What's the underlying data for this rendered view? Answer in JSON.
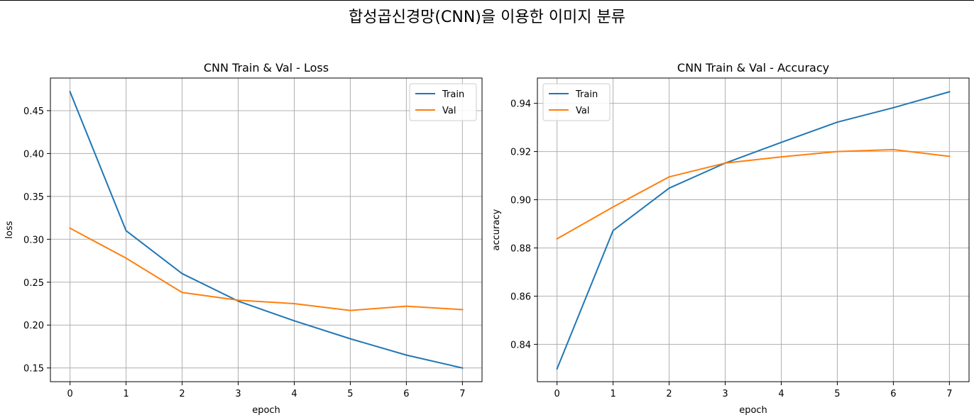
{
  "suptitle": "합성곱신경망(CNN)을 이용한 이미지 분류",
  "chart_data": [
    {
      "type": "line",
      "title": "CNN Train & Val - Loss",
      "xlabel": "epoch",
      "ylabel": "loss",
      "x": [
        0,
        1,
        2,
        3,
        4,
        5,
        6,
        7
      ],
      "xlim": [
        -0.35,
        7.35
      ],
      "ylim": [
        0.134,
        0.488
      ],
      "xticks": [
        "0",
        "1",
        "2",
        "3",
        "4",
        "5",
        "6",
        "7"
      ],
      "yticks": [
        "0.15",
        "0.20",
        "0.25",
        "0.30",
        "0.35",
        "0.40",
        "0.45"
      ],
      "grid": true,
      "legend_position": "top-right",
      "series": [
        {
          "name": "Train",
          "color": "#1f77b4",
          "values": [
            0.472,
            0.31,
            0.26,
            0.228,
            0.205,
            0.184,
            0.165,
            0.15
          ]
        },
        {
          "name": "Val",
          "color": "#ff7f0e",
          "values": [
            0.313,
            0.278,
            0.238,
            0.229,
            0.225,
            0.217,
            0.222,
            0.218
          ]
        }
      ]
    },
    {
      "type": "line",
      "title": "CNN Train & Val - Accuracy",
      "xlabel": "epoch",
      "ylabel": "accuracy",
      "x": [
        0,
        1,
        2,
        3,
        4,
        5,
        6,
        7
      ],
      "xlim": [
        -0.35,
        7.35
      ],
      "ylim": [
        0.8245,
        0.9505
      ],
      "xticks": [
        "0",
        "1",
        "2",
        "3",
        "4",
        "5",
        "6",
        "7"
      ],
      "yticks": [
        "0.84",
        "0.86",
        "0.88",
        "0.90",
        "0.92",
        "0.94"
      ],
      "grid": true,
      "legend_position": "top-left",
      "series": [
        {
          "name": "Train",
          "color": "#1f77b4",
          "values": [
            0.8298,
            0.8872,
            0.9048,
            0.9152,
            0.9238,
            0.9322,
            0.9382,
            0.9448
          ]
        },
        {
          "name": "Val",
          "color": "#ff7f0e",
          "values": [
            0.8838,
            0.897,
            0.9095,
            0.9152,
            0.9178,
            0.92,
            0.9208,
            0.918
          ]
        }
      ]
    }
  ]
}
